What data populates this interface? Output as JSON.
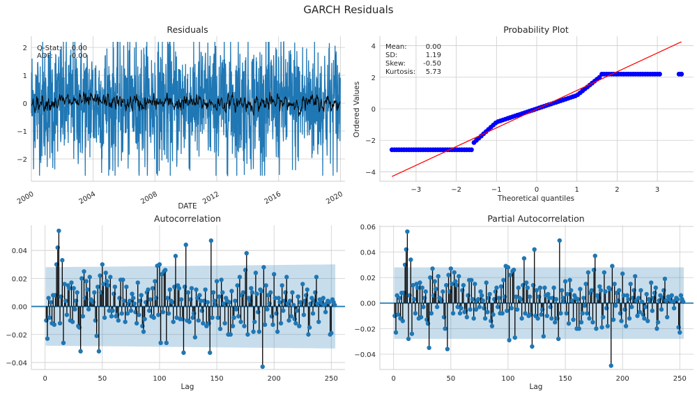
{
  "suptitle": "GARCH Residuals",
  "chart_data": [
    {
      "id": "residuals",
      "type": "line",
      "title": "Residuals",
      "xlabel": "DATE",
      "ylabel": "",
      "x_ticks": [
        "2000",
        "2004",
        "2008",
        "2012",
        "2016",
        "2020"
      ],
      "y_ticks": [
        -2,
        -1,
        0,
        1,
        2
      ],
      "xlim": [
        2000,
        2020.3
      ],
      "ylim": [
        -2.8,
        2.4
      ],
      "grid": true,
      "series": [
        {
          "name": "",
          "color": "#1f77b4",
          "description_values": {
            "min": -2.6,
            "max": 2.2
          }
        },
        {
          "name": "",
          "color": "#000000",
          "description_values": {
            "rolling_mean_range": [
              -1.2,
              0.8
            ]
          }
        }
      ],
      "stats": [
        {
          "label": "Q-Stat:",
          "value": "0.00"
        },
        {
          "label": "ADF:",
          "value": "0.00"
        }
      ]
    },
    {
      "id": "probplot",
      "type": "scatter",
      "title": "Probability Plot",
      "xlabel": "Theoretical quantiles",
      "ylabel": "Ordered Values",
      "x_ticks": [
        -3,
        -2,
        -1,
        0,
        1,
        2,
        3
      ],
      "y_ticks": [
        -4,
        -2,
        0,
        2,
        4
      ],
      "xlim": [
        -3.9,
        3.9
      ],
      "ylim": [
        -4.6,
        4.6
      ],
      "grid": true,
      "points_color": "#0000ff",
      "line_color": "#ff0000",
      "fit_line": {
        "x": [
          -3.6,
          3.6
        ],
        "y": [
          -4.3,
          4.25
        ]
      },
      "lower_clip": -2.6,
      "upper_clip": 2.2,
      "stats": [
        {
          "label": "Mean:",
          "value": "0.00"
        },
        {
          "label": "SD:",
          "value": "1.19"
        },
        {
          "label": "Skew:",
          "value": "-0.50"
        },
        {
          "label": "Kurtosis:",
          "value": "5.73"
        }
      ]
    },
    {
      "id": "acf",
      "type": "stem",
      "title": "Autocorrelation",
      "xlabel": "Lag",
      "ylabel": "",
      "x_ticks": [
        0,
        50,
        100,
        150,
        200,
        250
      ],
      "y_ticks": [
        -0.04,
        -0.02,
        0.0,
        0.02,
        0.04
      ],
      "y_tick_labels": [
        "−0.04",
        "−0.02",
        "0.00",
        "0.02",
        "0.04"
      ],
      "xlim": [
        -12,
        262
      ],
      "ylim": [
        -0.045,
        0.058
      ],
      "grid": true,
      "confidence_band": {
        "upper_start": 0.028,
        "upper_end": 0.03,
        "lower_start": -0.028,
        "lower_end": -0.03
      },
      "values": [
        0.0,
        -0.01,
        -0.023,
        0.006,
        -0.008,
        0.003,
        -0.012,
        0.008,
        -0.013,
        0.008,
        0.03,
        0.042,
        0.054,
        -0.012,
        0.007,
        0.033,
        -0.026,
        0.016,
        0.004,
        -0.006,
        0.015,
        0.013,
        -0.01,
        0.017,
        -0.011,
        0.013,
        -0.002,
        0.004,
        0.01,
        -0.014,
        -0.015,
        -0.032,
        0.02,
        -0.007,
        0.025,
        0.006,
        0.018,
        0.012,
        -0.002,
        0.021,
        0.005,
        0.004,
        0.003,
        0.01,
        -0.01,
        -0.021,
        0.014,
        -0.032,
        0.022,
        0.01,
        0.03,
        0.016,
        -0.008,
        0.024,
        0.018,
        0.015,
        -0.003,
        0.021,
        -0.007,
        -0.003,
        0.009,
        0.014,
        -0.007,
        -0.006,
        -0.01,
        0.006,
        0.019,
        -0.005,
        0.019,
        0.004,
        -0.011,
        0.014,
        -0.005,
        0.002,
        0.004,
        -0.003,
        0.009,
        0.006,
        0.002,
        -0.004,
        -0.012,
        0.017,
        -0.006,
        0.004,
        0.008,
        -0.014,
        -0.018,
        -0.009,
        0.003,
        0.01,
        0.012,
        -0.003,
        0.005,
        -0.007,
        0.013,
        -0.008,
        0.018,
        0.006,
        0.029,
        -0.006,
        0.03,
        -0.026,
        0.023,
        -0.004,
        0.025,
        0.026,
        -0.026,
        0.006,
        -0.005,
        0.012,
        0.004,
        0.003,
        -0.011,
        0.014,
        0.036,
        -0.008,
        0.015,
        0.013,
        -0.009,
        0.005,
        -0.009,
        -0.033,
        0.014,
        0.044,
        -0.01,
        0.01,
        -0.011,
        0.005,
        0.013,
        -0.008,
        -0.005,
        -0.022,
        0.012,
        0.006,
        -0.01,
        0.008,
        0.004,
        -0.003,
        -0.012,
        0.004,
        0.012,
        -0.014,
        0.003,
        -0.012,
        -0.033,
        0.047,
        -0.008,
        0.01,
        0.004,
        0.001,
        0.018,
        -0.008,
        0.007,
        -0.016,
        0.019,
        0.01,
        0.002,
        -0.012,
        0.006,
        0.004,
        -0.02,
        0.003,
        -0.02,
        0.011,
        -0.014,
        -0.008,
        0.004,
        -0.002,
        0.015,
        -0.007,
        0.021,
        -0.011,
        0.008,
        0.01,
        -0.014,
        0.026,
        0.038,
        -0.02,
        0.006,
        0.004,
        0.013,
        0.01,
        -0.018,
        -0.011,
        0.024,
        0.009,
        -0.004,
        -0.018,
        0.012,
        0.011,
        -0.043,
        0.028,
        -0.013,
        0.015,
        -0.002,
        0.008,
        0.002,
        0.01,
        -0.007,
        -0.013,
        0.023,
        0.006,
        -0.005,
        -0.018,
        0.006,
        0.003,
        -0.012,
        0.015,
        -0.003,
        0.004,
        0.01,
        0.021,
        0.002,
        -0.01,
        0.004,
        -0.007,
        0.01,
        0.001,
        -0.009,
        -0.012,
        -0.003,
        0.007,
        -0.014,
        0.003,
        0.002,
        0.016,
        -0.006,
        0.004,
        0.008,
        0.012,
        -0.02,
        -0.015,
        0.002,
        0.006,
        -0.005,
        0.004,
        0.01,
        0.021,
        0.002,
        -0.011,
        0.005,
        0.003,
        0.002,
        0.006,
        0.001,
        -0.004,
        0.002,
        0.004,
        0.003,
        -0.02,
        -0.019,
        0.005,
        0.003,
        0.001
      ],
      "point_color": "#1f77b4",
      "stem_color": "#000000"
    },
    {
      "id": "pacf",
      "type": "stem",
      "title": "Partial Autocorrelation",
      "xlabel": "Lag",
      "ylabel": "",
      "x_ticks": [
        0,
        50,
        100,
        150,
        200,
        250
      ],
      "y_ticks": [
        -0.04,
        -0.02,
        0.0,
        0.02,
        0.04,
        0.06
      ],
      "y_tick_labels": [
        "−0.04",
        "−0.02",
        "0.00",
        "0.02",
        "0.04",
        "0.06"
      ],
      "xlim": [
        -12,
        262
      ],
      "ylim": [
        -0.052,
        0.061
      ],
      "grid": true,
      "confidence_band": {
        "upper_start": 0.028,
        "upper_end": 0.028,
        "lower_start": -0.028,
        "lower_end": -0.028
      },
      "values": [
        0.0,
        -0.01,
        -0.023,
        0.006,
        -0.009,
        0.004,
        -0.012,
        0.008,
        -0.014,
        0.008,
        0.03,
        0.042,
        0.056,
        -0.028,
        0.006,
        0.034,
        -0.024,
        0.014,
        0.003,
        -0.008,
        0.015,
        0.012,
        -0.012,
        0.016,
        -0.011,
        0.012,
        -0.003,
        0.004,
        0.009,
        -0.013,
        -0.016,
        -0.035,
        0.02,
        -0.008,
        0.027,
        0.006,
        0.017,
        0.011,
        -0.003,
        0.021,
        0.004,
        0.003,
        0.002,
        0.009,
        -0.011,
        -0.02,
        0.014,
        -0.036,
        0.022,
        0.009,
        0.027,
        0.015,
        -0.008,
        0.024,
        0.017,
        0.014,
        -0.003,
        0.021,
        -0.008,
        -0.004,
        0.01,
        0.014,
        -0.007,
        -0.006,
        -0.011,
        0.006,
        0.018,
        -0.005,
        0.018,
        0.003,
        -0.012,
        0.015,
        -0.005,
        0.002,
        0.003,
        -0.003,
        0.009,
        0.006,
        0.002,
        -0.004,
        -0.012,
        0.016,
        -0.007,
        0.004,
        0.007,
        -0.014,
        -0.018,
        -0.009,
        0.003,
        0.009,
        0.012,
        -0.003,
        0.004,
        -0.008,
        0.013,
        -0.008,
        0.018,
        0.005,
        0.029,
        -0.006,
        0.028,
        -0.029,
        0.022,
        -0.004,
        0.025,
        0.026,
        -0.027,
        0.005,
        -0.005,
        0.012,
        0.004,
        0.003,
        -0.012,
        0.014,
        0.035,
        -0.008,
        0.016,
        0.012,
        -0.01,
        0.005,
        -0.009,
        -0.034,
        0.014,
        0.042,
        -0.01,
        0.01,
        -0.012,
        0.005,
        0.012,
        -0.009,
        -0.005,
        -0.026,
        0.012,
        0.006,
        -0.01,
        0.007,
        0.004,
        -0.003,
        -0.012,
        0.004,
        0.012,
        -0.015,
        0.003,
        -0.012,
        -0.028,
        0.049,
        -0.008,
        0.01,
        0.004,
        0.001,
        0.017,
        -0.008,
        0.007,
        -0.016,
        0.018,
        0.01,
        0.002,
        -0.013,
        0.006,
        0.004,
        -0.02,
        0.003,
        -0.02,
        0.011,
        -0.015,
        -0.008,
        0.004,
        -0.002,
        0.015,
        -0.008,
        0.024,
        -0.012,
        0.008,
        0.01,
        -0.015,
        0.026,
        0.037,
        -0.02,
        0.006,
        0.004,
        0.013,
        0.01,
        -0.019,
        -0.011,
        0.024,
        0.009,
        -0.004,
        -0.018,
        0.012,
        0.011,
        -0.049,
        0.029,
        -0.013,
        0.015,
        -0.002,
        0.008,
        0.002,
        0.01,
        -0.008,
        -0.014,
        0.023,
        0.006,
        -0.005,
        -0.018,
        0.006,
        0.003,
        -0.012,
        0.015,
        -0.003,
        0.004,
        0.01,
        0.021,
        0.002,
        -0.01,
        0.004,
        -0.007,
        0.01,
        0.001,
        -0.009,
        -0.012,
        -0.003,
        0.007,
        -0.014,
        0.003,
        0.002,
        0.016,
        -0.006,
        0.004,
        0.008,
        0.012,
        -0.02,
        -0.015,
        0.002,
        0.006,
        -0.005,
        0.004,
        0.01,
        0.019,
        0.002,
        -0.011,
        0.005,
        0.003,
        0.002,
        0.006,
        0.001,
        -0.004,
        0.002,
        0.004,
        0.003,
        -0.019,
        -0.023,
        0.006,
        0.003,
        0.001
      ],
      "point_color": "#1f77b4",
      "stem_color": "#000000"
    }
  ]
}
